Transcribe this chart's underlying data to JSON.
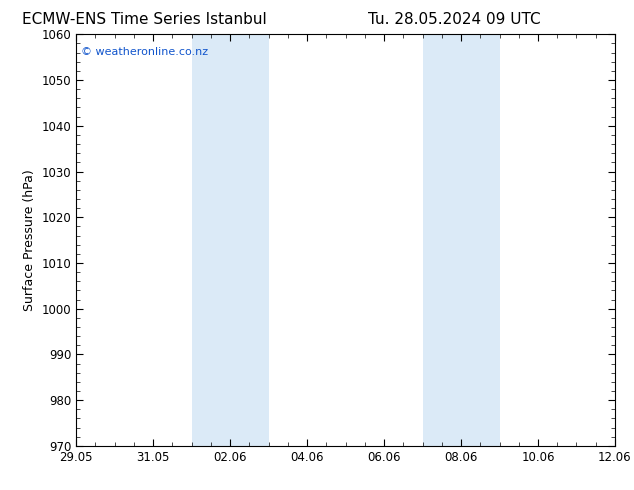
{
  "title_left": "ECMW-ENS Time Series Istanbul",
  "title_right": "Tu. 28.05.2024 09 UTC",
  "ylabel": "Surface Pressure (hPa)",
  "ylim": [
    970,
    1060
  ],
  "yticks": [
    970,
    980,
    990,
    1000,
    1010,
    1020,
    1030,
    1040,
    1050,
    1060
  ],
  "xlabel_dates": [
    "29.05",
    "31.05",
    "02.06",
    "04.06",
    "06.06",
    "08.06",
    "10.06",
    "12.06"
  ],
  "xtick_positions": [
    0,
    2,
    4,
    6,
    8,
    10,
    12,
    14
  ],
  "xlim": [
    0,
    14
  ],
  "shade_bands": [
    {
      "x_start": 3.0,
      "x_end": 5.0
    },
    {
      "x_start": 9.0,
      "x_end": 11.0
    }
  ],
  "shade_color": "#dbeaf7",
  "background_color": "#ffffff",
  "plot_bg_color": "#ffffff",
  "title_color": "#000000",
  "watermark_text": "© weatheronline.co.nz",
  "watermark_color": "#1155cc",
  "tick_label_color": "#000000",
  "axis_color": "#000000",
  "fig_width": 6.34,
  "fig_height": 4.9,
  "dpi": 100
}
